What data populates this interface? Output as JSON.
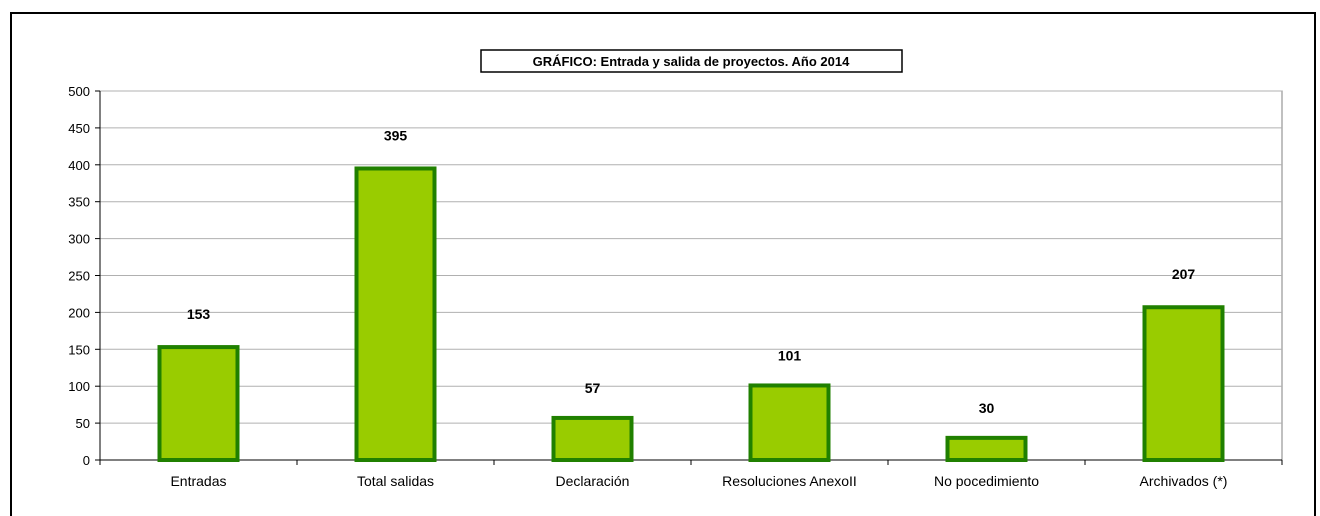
{
  "chart_data": {
    "type": "bar",
    "title": "GRÁFICO: Entrada y salida de proyectos. Año 2014",
    "categories": [
      "Entradas",
      "Total salidas",
      "Declaración",
      "Resoluciones AnexoII",
      "No pocedimiento",
      "Archivados (*)"
    ],
    "values": [
      153,
      395,
      57,
      101,
      30,
      207
    ],
    "data_labels": [
      "153",
      "395",
      "57",
      "101",
      "30",
      "207"
    ],
    "yticks": [
      "0",
      "50",
      "100",
      "150",
      "200",
      "250",
      "300",
      "350",
      "400",
      "450",
      "500"
    ],
    "ylim": [
      0,
      500
    ],
    "grid": true,
    "legend": "none",
    "bar_fill": "#99cc00",
    "bar_stroke": "#208000"
  }
}
